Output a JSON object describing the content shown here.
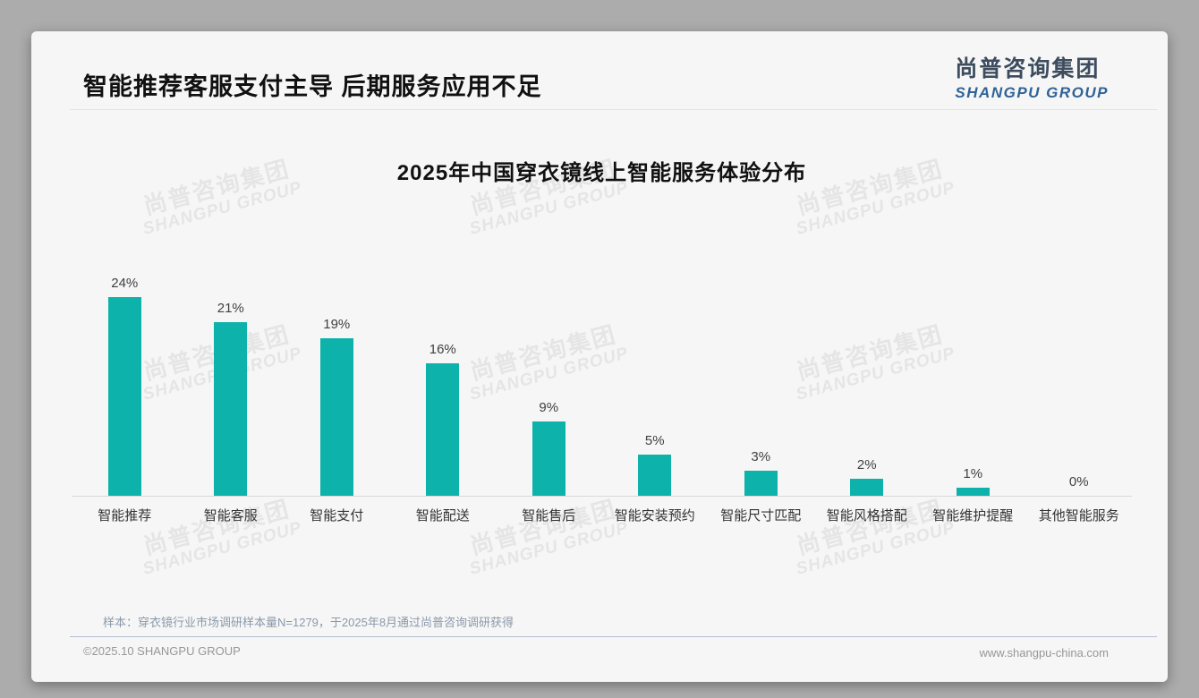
{
  "page": {
    "title": "智能推荐客服支付主导 后期服务应用不足",
    "logo": {
      "cn": "尚普咨询集团",
      "en": "SHANGPU GROUP"
    },
    "watermark": {
      "cn": "尚普咨询集团",
      "en": "SHANGPU GROUP"
    },
    "note": "样本：穿衣镜行业市场调研样本量N=1279，于2025年8月通过尚普咨询调研获得",
    "footer": {
      "left": "©2025.10 SHANGPU GROUP",
      "right": "www.shangpu-china.com"
    }
  },
  "colors": {
    "bar": "#0db3ab",
    "logo_cn": "#3d4c5e",
    "logo_en": "#2f6397",
    "note_text": "#8b99ab",
    "footer_text": "#979797"
  },
  "chart_data": {
    "type": "bar",
    "title": "2025年中国穿衣镜线上智能服务体验分布",
    "categories": [
      "智能推荐",
      "智能客服",
      "智能支付",
      "智能配送",
      "智能售后",
      "智能安装预约",
      "智能尺寸匹配",
      "智能风格搭配",
      "智能维护提醒",
      "其他智能服务"
    ],
    "values": [
      24,
      21,
      19,
      16,
      9,
      5,
      3,
      2,
      1,
      0
    ],
    "value_labels": [
      "24%",
      "21%",
      "19%",
      "16%",
      "9%",
      "5%",
      "3%",
      "2%",
      "1%",
      "0%"
    ],
    "xlabel": "",
    "ylabel": "",
    "ylim": [
      0,
      26
    ],
    "grid": false,
    "legend": false,
    "bar_color": "#0db3ab"
  }
}
